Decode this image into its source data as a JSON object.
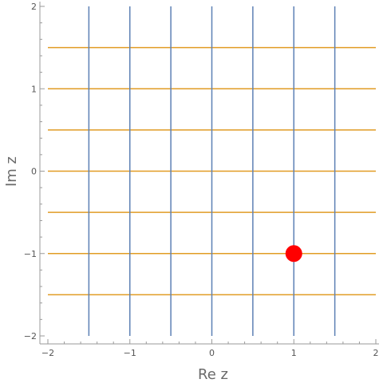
{
  "chart_data": {
    "type": "scatter",
    "xlabel": "Re z",
    "ylabel": "Im z",
    "xlim": [
      -2,
      2
    ],
    "ylim": [
      -2,
      2
    ],
    "x_ticks": [
      -2,
      -1,
      0,
      1,
      2
    ],
    "y_ticks": [
      -2,
      -1,
      0,
      1,
      2
    ],
    "x_tick_labels": [
      "−2",
      "−1",
      "0",
      "1",
      "2"
    ],
    "y_tick_labels": [
      "−2",
      "−1",
      "0",
      "1",
      "2"
    ],
    "grid": false,
    "vertical_lines": {
      "color": "#5e81b5",
      "x_values": [
        -1.5,
        -1,
        -0.5,
        0,
        0.5,
        1,
        1.5
      ],
      "y_range": [
        -2,
        2
      ]
    },
    "horizontal_lines": {
      "color": "#e19c24",
      "y_values": [
        -1.5,
        -1,
        -0.5,
        0,
        0.5,
        1,
        1.5
      ],
      "x_range": [
        -2,
        2
      ]
    },
    "points": [
      {
        "x": 1,
        "y": -1,
        "color": "#ff0000"
      }
    ]
  }
}
